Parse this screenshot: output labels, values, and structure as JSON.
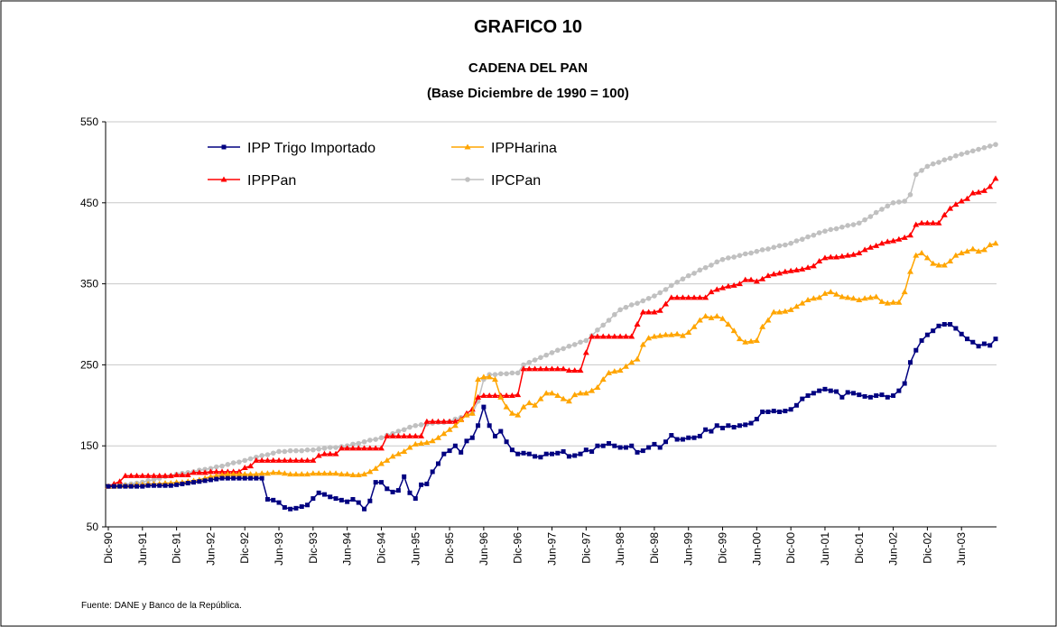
{
  "chart_data": {
    "type": "line",
    "title": "GRAFICO 10",
    "subtitle": "CADENA DEL PAN",
    "subtitle2": "(Base Diciembre de 1990 = 100)",
    "source": "Fuente: DANE y Banco de la República.",
    "categories": [
      "Dic-90",
      null,
      null,
      null,
      null,
      null,
      "Jun-91",
      null,
      null,
      null,
      null,
      null,
      "Dic-91",
      null,
      null,
      null,
      null,
      null,
      "Jun-92",
      null,
      null,
      null,
      null,
      null,
      "Dic-92",
      null,
      null,
      null,
      null,
      null,
      "Jun-93",
      null,
      null,
      null,
      null,
      null,
      "Dic-93",
      null,
      null,
      null,
      null,
      null,
      "Jun-94",
      null,
      null,
      null,
      null,
      null,
      "Dic-94",
      null,
      null,
      null,
      null,
      null,
      "Jun-95",
      null,
      null,
      null,
      null,
      null,
      "Dic-95",
      null,
      null,
      null,
      null,
      null,
      "Jun-96",
      null,
      null,
      null,
      null,
      null,
      "Dic-96",
      null,
      null,
      null,
      null,
      null,
      "Jun-97",
      null,
      null,
      null,
      null,
      null,
      "Dic-97",
      null,
      null,
      null,
      null,
      null,
      "Jun-98",
      null,
      null,
      null,
      null,
      null,
      "Dic-98",
      null,
      null,
      null,
      null,
      null,
      "Jun-99",
      null,
      null,
      null,
      null,
      null,
      "Dic-99",
      null,
      null,
      null,
      null,
      null,
      "Jun-00",
      null,
      null,
      null,
      null,
      null,
      "Dic-00",
      null,
      null,
      null,
      null,
      null,
      "Jun-01",
      null,
      null,
      null,
      null,
      null,
      "Dic-01",
      null,
      null,
      null,
      null,
      null,
      "Jun-02",
      null,
      null,
      null,
      null,
      null,
      "Dic-02",
      null,
      null,
      null,
      null,
      null,
      "Jun-03",
      null,
      null,
      null,
      null,
      null,
      null
    ],
    "series": [
      {
        "name": "IPP Trigo Importado",
        "color": "#000080",
        "marker": "square",
        "values": [
          100,
          100,
          100,
          100,
          100,
          100,
          100,
          101,
          101,
          101,
          101,
          101,
          102,
          103,
          104,
          105,
          106,
          107,
          108,
          109,
          110,
          110,
          110,
          110,
          110,
          110,
          110,
          110,
          84,
          83,
          80,
          74,
          72,
          73,
          75,
          77,
          85,
          92,
          90,
          87,
          85,
          83,
          81,
          84,
          80,
          72,
          82,
          105,
          105,
          97,
          93,
          95,
          112,
          92,
          85,
          102,
          103,
          118,
          128,
          140,
          144,
          150,
          142,
          156,
          160,
          175,
          198,
          175,
          162,
          168,
          155,
          145,
          140,
          141,
          140,
          137,
          136,
          140,
          140,
          141,
          143,
          137,
          138,
          140,
          145,
          143,
          150,
          150,
          153,
          150,
          148,
          148,
          150,
          142,
          144,
          148,
          152,
          148,
          155,
          163,
          158,
          158,
          160,
          160,
          162,
          170,
          168,
          175,
          172,
          175,
          173,
          175,
          176,
          178,
          183,
          192,
          192,
          193,
          192,
          193,
          195,
          200,
          208,
          212,
          215,
          218,
          220,
          218,
          217,
          210,
          216,
          215,
          213,
          211,
          210,
          212,
          213,
          210,
          212,
          218,
          227,
          253,
          268,
          280,
          287,
          292,
          298,
          300,
          300,
          295,
          288,
          282,
          278,
          273,
          276,
          274,
          282
        ]
      },
      {
        "name": "IPPHarina",
        "color": "#ffa500",
        "marker": "triangle",
        "values": [
          100,
          100,
          101,
          101,
          101,
          102,
          102,
          103,
          103,
          103,
          104,
          104,
          105,
          105,
          106,
          107,
          108,
          110,
          112,
          113,
          114,
          115,
          115,
          115,
          115,
          115,
          115,
          116,
          116,
          117,
          117,
          116,
          115,
          115,
          115,
          115,
          116,
          116,
          116,
          116,
          116,
          115,
          115,
          114,
          114,
          115,
          118,
          122,
          128,
          132,
          137,
          140,
          143,
          148,
          152,
          153,
          154,
          156,
          160,
          165,
          170,
          175,
          182,
          188,
          190,
          232,
          235,
          235,
          232,
          210,
          198,
          190,
          188,
          198,
          203,
          200,
          208,
          215,
          215,
          212,
          208,
          205,
          213,
          215,
          215,
          218,
          222,
          232,
          240,
          242,
          243,
          248,
          253,
          257,
          275,
          283,
          285,
          286,
          287,
          287,
          288,
          286,
          290,
          297,
          305,
          310,
          308,
          310,
          307,
          300,
          292,
          282,
          278,
          279,
          280,
          297,
          305,
          315,
          315,
          316,
          318,
          322,
          326,
          330,
          332,
          333,
          338,
          340,
          337,
          334,
          333,
          332,
          330,
          332,
          333,
          334,
          328,
          326,
          327,
          327,
          340,
          365,
          385,
          388,
          382,
          375,
          373,
          373,
          378,
          385,
          388,
          390,
          393,
          390,
          392,
          398,
          400
        ]
      },
      {
        "name": "IPPPan",
        "color": "#ff0000",
        "marker": "triangle",
        "values": [
          100,
          103,
          106,
          113,
          113,
          113,
          113,
          113,
          113,
          113,
          113,
          113,
          114,
          114,
          114,
          117,
          117,
          117,
          118,
          118,
          118,
          118,
          118,
          118,
          123,
          125,
          132,
          132,
          132,
          132,
          132,
          132,
          132,
          132,
          132,
          132,
          132,
          138,
          140,
          140,
          140,
          147,
          147,
          147,
          147,
          147,
          147,
          147,
          147,
          162,
          162,
          162,
          162,
          162,
          162,
          162,
          180,
          180,
          180,
          180,
          180,
          180,
          183,
          190,
          195,
          210,
          212,
          212,
          212,
          212,
          212,
          212,
          213,
          245,
          245,
          245,
          245,
          245,
          245,
          245,
          245,
          243,
          243,
          243,
          265,
          285,
          285,
          285,
          285,
          285,
          285,
          285,
          285,
          300,
          315,
          315,
          315,
          317,
          325,
          333,
          333,
          333,
          333,
          333,
          333,
          333,
          340,
          343,
          345,
          347,
          348,
          350,
          355,
          355,
          353,
          356,
          360,
          362,
          363,
          365,
          366,
          367,
          368,
          370,
          372,
          378,
          382,
          383,
          383,
          384,
          385,
          386,
          388,
          392,
          395,
          397,
          400,
          402,
          403,
          405,
          407,
          410,
          423,
          425,
          425,
          425,
          425,
          435,
          443,
          448,
          452,
          455,
          462,
          463,
          465,
          470,
          480
        ]
      },
      {
        "name": "IPCPan",
        "color": "#c0c0c0",
        "marker": "circle",
        "values": [
          100,
          101,
          102,
          102,
          103,
          104,
          105,
          107,
          108,
          110,
          112,
          113,
          115,
          116,
          117,
          118,
          120,
          121,
          122,
          124,
          125,
          127,
          129,
          130,
          132,
          134,
          136,
          138,
          139,
          141,
          143,
          143,
          144,
          144,
          144,
          145,
          145,
          146,
          147,
          148,
          148,
          149,
          150,
          152,
          153,
          155,
          157,
          158,
          160,
          163,
          165,
          168,
          170,
          173,
          175,
          176,
          177,
          178,
          179,
          179,
          180,
          183,
          185,
          188,
          190,
          205,
          232,
          238,
          238,
          239,
          239,
          240,
          240,
          250,
          253,
          256,
          259,
          262,
          265,
          268,
          270,
          273,
          275,
          278,
          280,
          286,
          293,
          299,
          305,
          312,
          318,
          321,
          324,
          326,
          329,
          332,
          335,
          339,
          343,
          348,
          352,
          356,
          360,
          363,
          367,
          370,
          373,
          377,
          380,
          382,
          383,
          385,
          387,
          388,
          390,
          392,
          393,
          395,
          397,
          398,
          400,
          403,
          405,
          408,
          410,
          413,
          415,
          417,
          418,
          420,
          422,
          423,
          425,
          429,
          433,
          438,
          442,
          446,
          450,
          451,
          452,
          460,
          485,
          490,
          495,
          498,
          500,
          503,
          505,
          508,
          510,
          512,
          514,
          516,
          518,
          520,
          522
        ]
      }
    ],
    "ylim": [
      50,
      550
    ],
    "yticks": [
      50,
      150,
      250,
      350,
      450,
      550
    ],
    "grid": true,
    "legend": "upper left"
  }
}
